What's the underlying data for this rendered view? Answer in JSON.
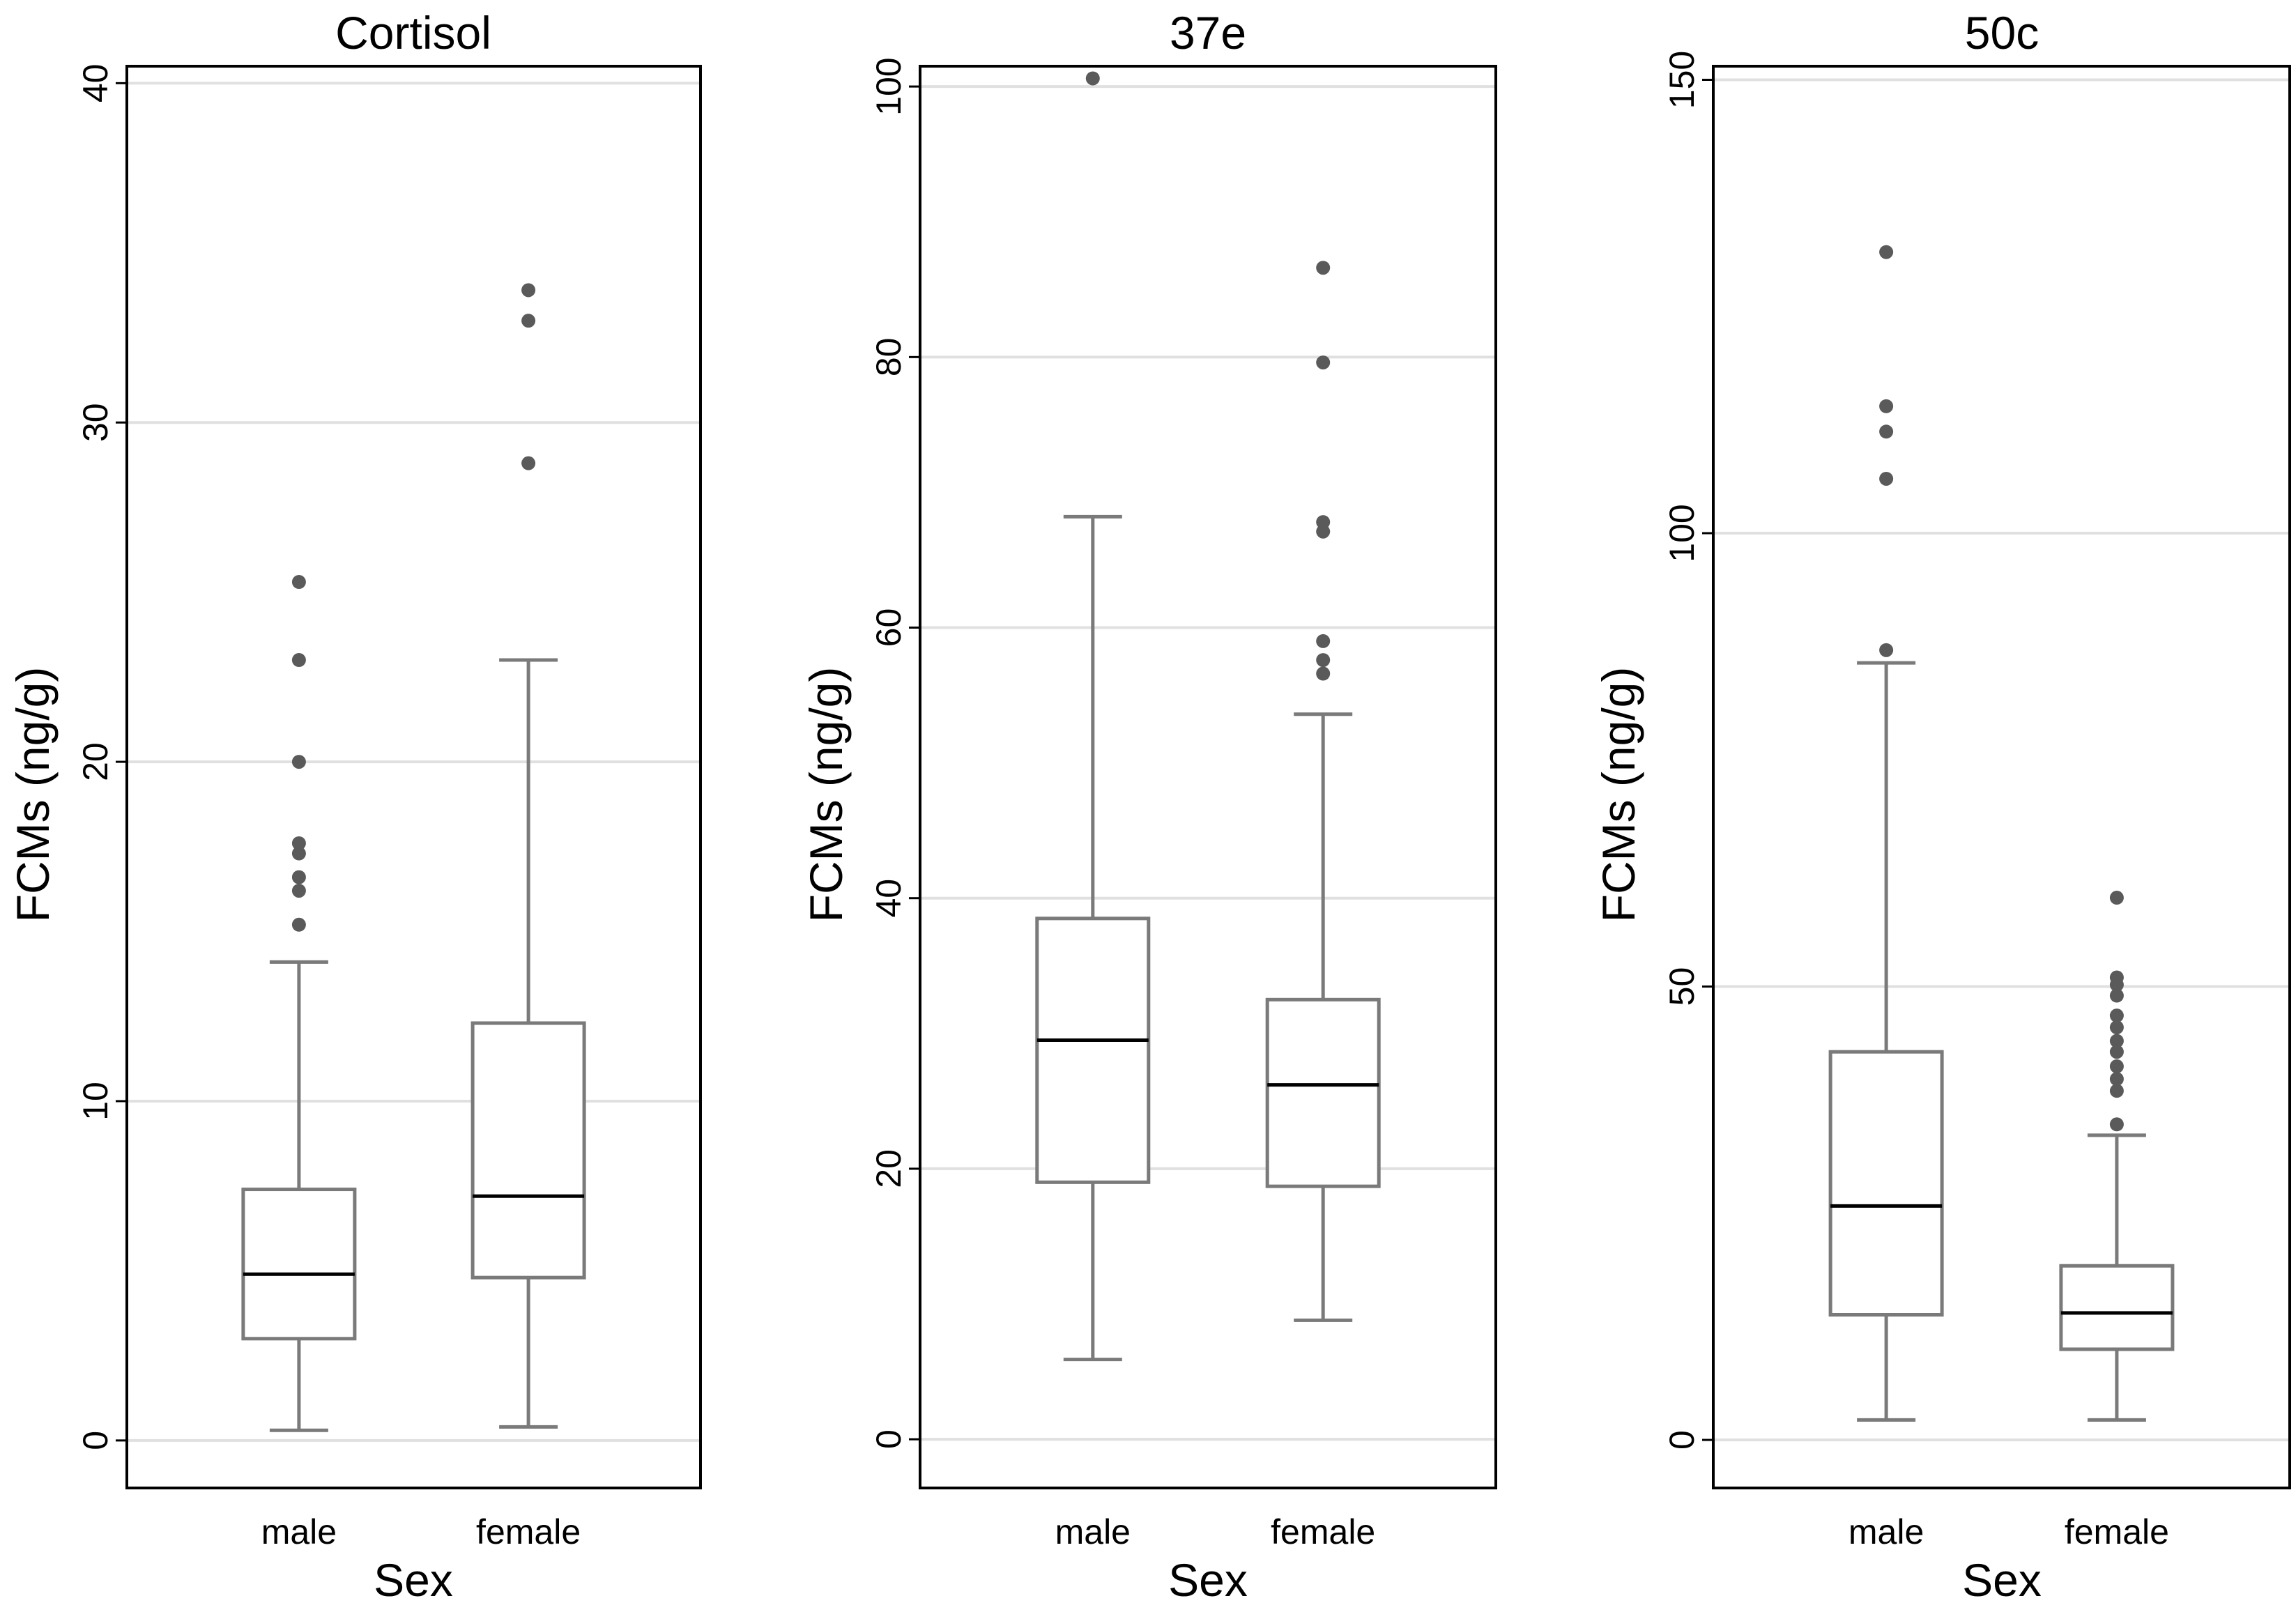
{
  "chart_data": [
    {
      "type": "box",
      "title": "Cortisol",
      "xlabel": "Sex",
      "ylabel": "FCMs (ng/g)",
      "ylim": [
        -1.4,
        40.5
      ],
      "yticks": [
        0,
        10,
        20,
        30,
        40
      ],
      "grid": true,
      "categories": [
        "male",
        "female"
      ],
      "boxes": [
        {
          "category": "male",
          "whisker_low": 0.3,
          "q1": 3.0,
          "median": 4.9,
          "q3": 7.4,
          "whisker_high": 14.1,
          "outliers": [
            15.2,
            16.2,
            16.6,
            17.3,
            17.6,
            20.0,
            23.0,
            25.3
          ]
        },
        {
          "category": "female",
          "whisker_low": 0.4,
          "q1": 4.8,
          "median": 7.2,
          "q3": 12.3,
          "whisker_high": 23.0,
          "outliers": [
            28.8,
            33.0,
            33.9
          ]
        }
      ]
    },
    {
      "type": "box",
      "title": "37e",
      "xlabel": "Sex",
      "ylabel": "FCMs (ng/g)",
      "ylim": [
        -3.6,
        101.5
      ],
      "yticks": [
        0,
        20,
        40,
        60,
        80,
        100
      ],
      "grid": true,
      "categories": [
        "male",
        "female"
      ],
      "boxes": [
        {
          "category": "male",
          "whisker_low": 5.9,
          "q1": 19.0,
          "median": 29.5,
          "q3": 38.5,
          "whisker_high": 68.2,
          "outliers": [
            100.6
          ]
        },
        {
          "category": "female",
          "whisker_low": 8.8,
          "q1": 18.7,
          "median": 26.2,
          "q3": 32.5,
          "whisker_high": 53.6,
          "outliers": [
            56.6,
            57.6,
            59.0,
            67.1,
            67.8,
            79.6,
            86.6
          ]
        }
      ]
    },
    {
      "type": "box",
      "title": "50c",
      "xlabel": "Sex",
      "ylabel": "FCMs (ng/g)",
      "ylim": [
        -5.3,
        151.5
      ],
      "yticks": [
        0,
        50,
        100,
        150
      ],
      "grid": true,
      "categories": [
        "male",
        "female"
      ],
      "boxes": [
        {
          "category": "male",
          "whisker_low": 2.2,
          "q1": 13.8,
          "median": 25.8,
          "q3": 42.8,
          "whisker_high": 85.7,
          "outliers": [
            87.1,
            106.0,
            111.2,
            114.0,
            131.0
          ]
        },
        {
          "category": "female",
          "whisker_low": 2.2,
          "q1": 10.0,
          "median": 14.0,
          "q3": 19.2,
          "whisker_high": 33.6,
          "outliers": [
            34.8,
            38.5,
            39.8,
            41.2,
            42.8,
            44.0,
            45.5,
            46.8,
            49.0,
            50.2,
            51.0,
            59.8
          ]
        }
      ]
    }
  ]
}
